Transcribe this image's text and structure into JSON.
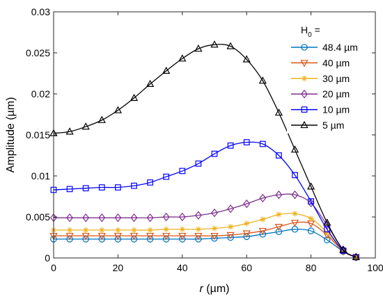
{
  "chart_data": {
    "type": "line",
    "xlabel": {
      "italic": "r",
      "rest": " (µm)"
    },
    "ylabel": "Amplitude (µm)",
    "xlim": [
      0,
      100
    ],
    "ylim": [
      0,
      0.03
    ],
    "xticks": [
      0,
      20,
      40,
      60,
      80,
      100
    ],
    "xtick_labels": [
      "0",
      "20",
      "40",
      "60",
      "80",
      "100"
    ],
    "yticks": [
      0,
      0.005,
      0.01,
      0.015,
      0.02,
      0.025,
      0.03
    ],
    "ytick_labels": [
      "0",
      "0.005",
      "0.01",
      "0.015",
      "0.02",
      "0.025",
      "0.03"
    ],
    "grid": false,
    "legend": {
      "position": "top-right",
      "title": "H",
      "title_sub": "0",
      "title_suffix": " ="
    },
    "x": [
      0,
      5,
      10,
      15,
      20,
      25,
      30,
      35,
      40,
      45,
      50,
      55,
      60,
      65,
      70,
      75,
      80,
      85,
      90,
      94
    ],
    "series": [
      {
        "name": "48.4 µm",
        "color": "#0072BD",
        "marker": "circle",
        "values": [
          0.0023,
          0.0023,
          0.0023,
          0.0023,
          0.0023,
          0.0023,
          0.0023,
          0.0023,
          0.0023,
          0.0023,
          0.0024,
          0.0025,
          0.0026,
          0.0029,
          0.0032,
          0.0035,
          0.0033,
          0.0022,
          0.0008,
          0.0001
        ]
      },
      {
        "name": "40 µm",
        "color": "#D95319",
        "marker": "triangle-down",
        "values": [
          0.0027,
          0.0027,
          0.0027,
          0.0027,
          0.0027,
          0.0027,
          0.0027,
          0.0027,
          0.0027,
          0.0027,
          0.0027,
          0.0028,
          0.003,
          0.0033,
          0.0038,
          0.0043,
          0.0042,
          0.0028,
          0.0008,
          0.0001
        ]
      },
      {
        "name": "30 µm",
        "color": "#EDB120",
        "marker": "asterisk",
        "values": [
          0.0034,
          0.0034,
          0.0034,
          0.0034,
          0.0034,
          0.0034,
          0.0034,
          0.0035,
          0.0035,
          0.0035,
          0.0036,
          0.0038,
          0.0042,
          0.0047,
          0.0053,
          0.0054,
          0.0048,
          0.0031,
          0.0009,
          0.0001
        ]
      },
      {
        "name": "20 µm",
        "color": "#7E2F8E",
        "marker": "diamond",
        "values": [
          0.0049,
          0.0049,
          0.0049,
          0.0049,
          0.0049,
          0.0049,
          0.0049,
          0.005,
          0.005,
          0.0052,
          0.0055,
          0.006,
          0.0066,
          0.0073,
          0.0077,
          0.0077,
          0.0067,
          0.004,
          0.001,
          0.0001
        ]
      },
      {
        "name": "10 µm",
        "color": "#0000FF",
        "marker": "square",
        "values": [
          0.0083,
          0.0084,
          0.0085,
          0.0086,
          0.0086,
          0.0088,
          0.0092,
          0.0099,
          0.0106,
          0.0115,
          0.0127,
          0.0137,
          0.0141,
          0.0139,
          0.0125,
          0.0101,
          0.0069,
          0.0035,
          0.0009,
          0.0001
        ]
      },
      {
        "name": "5 µm",
        "color": "#000000",
        "marker": "triangle-up",
        "values": [
          0.0152,
          0.0154,
          0.016,
          0.0168,
          0.018,
          0.0195,
          0.0212,
          0.0228,
          0.0243,
          0.0255,
          0.026,
          0.0258,
          0.0242,
          0.0216,
          0.0177,
          0.0132,
          0.0087,
          0.0043,
          0.001,
          0.0001
        ]
      }
    ]
  }
}
